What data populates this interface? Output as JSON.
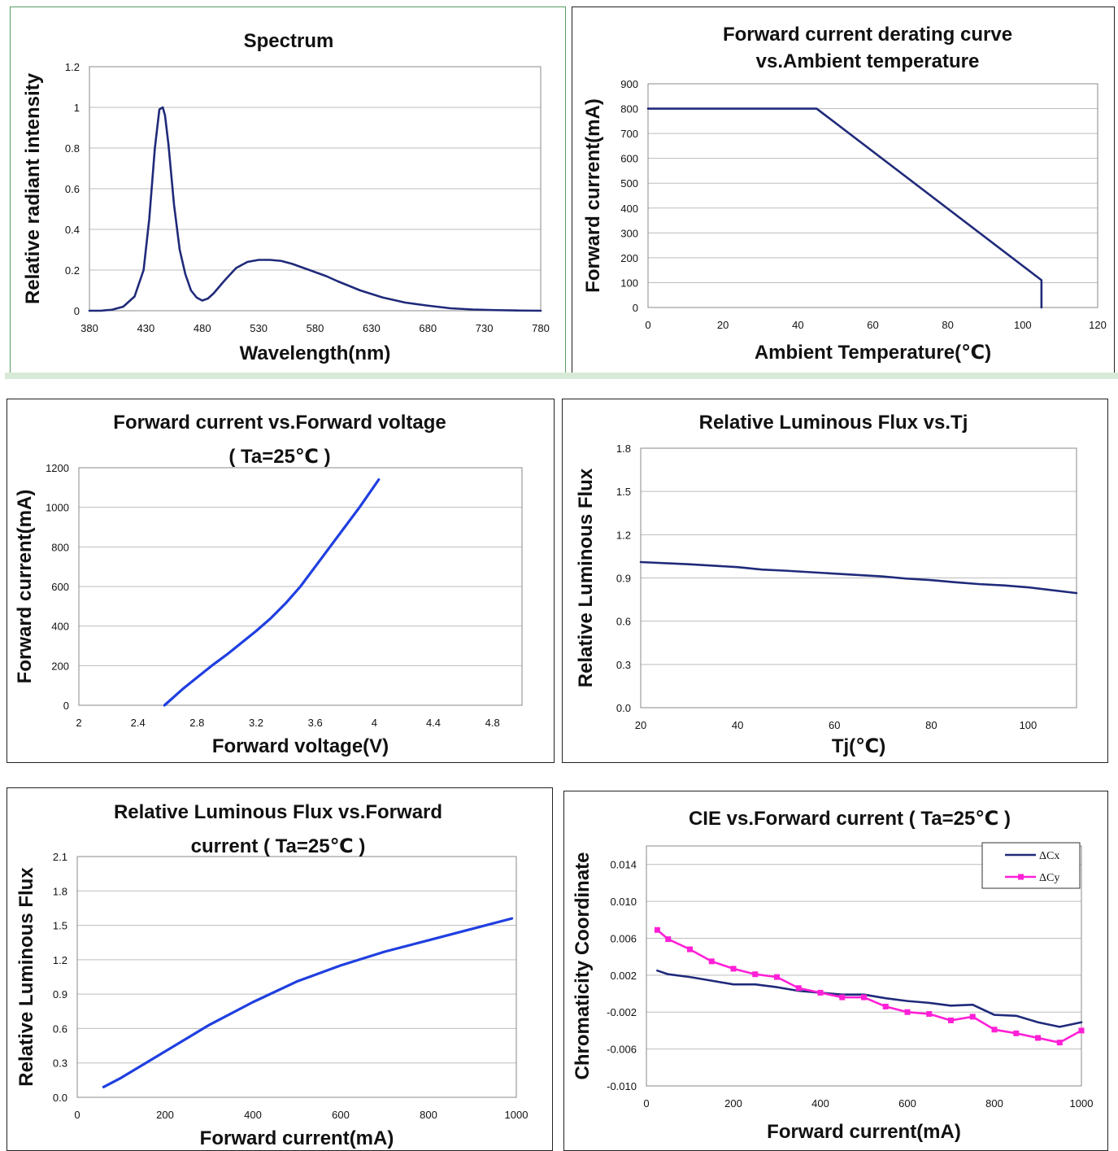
{
  "colors": {
    "navy": "#1f2a7a",
    "blue": "#1f3fe0",
    "magenta": "#ff1fd6"
  },
  "chart_data": [
    {
      "id": "spectrum",
      "type": "line",
      "title": [
        "Spectrum"
      ],
      "xlabel": "Wavelength(nm)",
      "ylabel": "Relative  radiant  intensity",
      "xlim": [
        380,
        780
      ],
      "ylim": [
        0,
        1.2
      ],
      "xticks": [
        380,
        430,
        480,
        530,
        580,
        630,
        680,
        730,
        780
      ],
      "yticks": [
        0,
        0.2,
        0.4,
        0.6,
        0.8,
        1,
        1.2
      ],
      "ytick_labels": [
        "0",
        "0.2",
        "0.4",
        "0.6",
        "0.8",
        "1",
        "1.2"
      ],
      "grid": true,
      "series": [
        {
          "color": "#1f2a7a",
          "x": [
            380,
            390,
            400,
            410,
            420,
            428,
            433,
            438,
            442,
            445,
            447,
            450,
            455,
            460,
            465,
            470,
            475,
            480,
            485,
            490,
            500,
            510,
            520,
            530,
            540,
            550,
            560,
            570,
            580,
            590,
            600,
            620,
            640,
            660,
            680,
            700,
            720,
            740,
            760,
            780
          ],
          "y": [
            0,
            0,
            0.005,
            0.02,
            0.07,
            0.2,
            0.45,
            0.8,
            0.99,
            1.0,
            0.96,
            0.82,
            0.52,
            0.3,
            0.18,
            0.1,
            0.065,
            0.05,
            0.06,
            0.085,
            0.15,
            0.21,
            0.24,
            0.25,
            0.25,
            0.245,
            0.23,
            0.21,
            0.19,
            0.17,
            0.145,
            0.1,
            0.065,
            0.04,
            0.025,
            0.012,
            0.006,
            0.003,
            0.001,
            0
          ]
        }
      ]
    },
    {
      "id": "derating",
      "type": "line",
      "title": [
        "Forward  current  derating  curve",
        "vs.Ambient  temperature"
      ],
      "xlabel": "Ambient   Temperature(℃)",
      "ylabel": "Forward  current(mA)",
      "xlim": [
        0,
        120
      ],
      "ylim": [
        0,
        900
      ],
      "xticks": [
        0,
        20,
        40,
        60,
        80,
        100,
        120
      ],
      "yticks": [
        0,
        100,
        200,
        300,
        400,
        500,
        600,
        700,
        800,
        900
      ],
      "grid": true,
      "series": [
        {
          "color": "#1f2a7a",
          "x": [
            0,
            45,
            105,
            105
          ],
          "y": [
            800,
            800,
            110,
            0
          ]
        }
      ]
    },
    {
      "id": "iv",
      "type": "line",
      "title": [
        "Forward current vs.Forward voltage",
        "( Ta=25℃ )"
      ],
      "xlabel": "Forward voltage(V)",
      "ylabel": "Forward current(mA)",
      "xlim": [
        2,
        5
      ],
      "ylim": [
        0,
        1200
      ],
      "xticks": [
        2,
        2.4,
        2.8,
        3.2,
        3.6,
        4,
        4.4,
        4.8
      ],
      "yticks": [
        0,
        200,
        400,
        600,
        800,
        1000,
        1200
      ],
      "grid": true,
      "series": [
        {
          "color": "#1f3fe0",
          "x": [
            2.58,
            2.7,
            2.8,
            2.9,
            3.0,
            3.1,
            3.2,
            3.3,
            3.4,
            3.5,
            3.6,
            3.7,
            3.8,
            3.9,
            4.03
          ],
          "y": [
            0,
            80,
            140,
            200,
            255,
            315,
            375,
            440,
            515,
            600,
            700,
            800,
            900,
            1000,
            1140
          ]
        }
      ]
    },
    {
      "id": "flux-tj",
      "type": "line",
      "title": [
        "Relative Luminous Flux vs.Tj"
      ],
      "xlabel": "Tj(℃)",
      "ylabel": "Relative Luminous Flux",
      "xlim": [
        20,
        110
      ],
      "ylim": [
        0,
        1.8
      ],
      "xticks": [
        20,
        40,
        60,
        80,
        100
      ],
      "yticks": [
        0,
        0.3,
        0.6,
        0.9,
        1.2,
        1.5,
        1.8
      ],
      "ytick_labels": [
        "0.0",
        "0.3",
        "0.6",
        "0.9",
        "1.2",
        "1.5",
        "1.8"
      ],
      "grid": true,
      "series": [
        {
          "color": "#1f2a7a",
          "x": [
            20,
            30,
            40,
            45,
            50,
            60,
            70,
            75,
            80,
            85,
            90,
            95,
            100,
            110
          ],
          "y": [
            1.01,
            0.995,
            0.975,
            0.958,
            0.95,
            0.93,
            0.91,
            0.895,
            0.885,
            0.87,
            0.857,
            0.848,
            0.835,
            0.795
          ]
        }
      ]
    },
    {
      "id": "flux-if",
      "type": "line",
      "title": [
        "Relative Luminous  Flux vs.Forward",
        "current ( Ta=25℃ )"
      ],
      "xlabel": "Forward current(mA)",
      "ylabel": "Relative Luminous Flux",
      "xlim": [
        0,
        1000
      ],
      "ylim": [
        0,
        2.1
      ],
      "xticks": [
        0,
        200,
        400,
        600,
        800,
        1000
      ],
      "yticks": [
        0,
        0.3,
        0.6,
        0.9,
        1.2,
        1.5,
        1.8,
        2.1
      ],
      "ytick_labels": [
        "0.0",
        "0.3",
        "0.6",
        "0.9",
        "1.2",
        "1.5",
        "1.8",
        "2.1"
      ],
      "grid": true,
      "series": [
        {
          "color": "#1f3fe0",
          "x": [
            60,
            100,
            200,
            300,
            400,
            500,
            600,
            700,
            800,
            900,
            990
          ],
          "y": [
            0.09,
            0.17,
            0.4,
            0.63,
            0.83,
            1.01,
            1.15,
            1.27,
            1.37,
            1.47,
            1.56
          ]
        }
      ]
    },
    {
      "id": "cie",
      "type": "line",
      "title": [
        "CIE vs.Forward current  ( Ta=25℃ )"
      ],
      "xlabel": "Forward current(mA)",
      "ylabel": "Chromaticity Coordinate",
      "xlim": [
        0,
        1000
      ],
      "ylim": [
        -0.01,
        0.016
      ],
      "xticks": [
        0,
        200,
        400,
        600,
        800,
        1000
      ],
      "yticks": [
        -0.01,
        -0.006,
        -0.002,
        0.002,
        0.006,
        0.01,
        0.014
      ],
      "ytick_labels": [
        "-0.010",
        "-0.006",
        "-0.002",
        "0.002",
        "0.006",
        "0.010",
        "0.014"
      ],
      "grid": true,
      "legend": "top-right",
      "series": [
        {
          "name": "ΔCx",
          "color": "#1f2a7a",
          "markers": false,
          "x": [
            25,
            50,
            100,
            150,
            200,
            250,
            300,
            350,
            400,
            450,
            500,
            550,
            600,
            650,
            700,
            750,
            800,
            850,
            900,
            950,
            1000
          ],
          "y": [
            0.0025,
            0.0021,
            0.0018,
            0.0014,
            0.001,
            0.001,
            0.0007,
            0.0003,
            0.0001,
            -0.0001,
            -0.0001,
            -0.0005,
            -0.0008,
            -0.001,
            -0.0013,
            -0.0012,
            -0.0023,
            -0.0024,
            -0.0031,
            -0.0036,
            -0.0031
          ]
        },
        {
          "name": "ΔCy",
          "color": "#ff1fd6",
          "markers": true,
          "x": [
            25,
            50,
            100,
            150,
            200,
            250,
            300,
            350,
            400,
            450,
            500,
            550,
            600,
            650,
            700,
            750,
            800,
            850,
            900,
            950,
            1000
          ],
          "y": [
            0.0069,
            0.0059,
            0.0048,
            0.0035,
            0.0027,
            0.0021,
            0.0018,
            0.0006,
            0.0001,
            -0.0004,
            -0.0004,
            -0.0014,
            -0.002,
            -0.0022,
            -0.0029,
            -0.0025,
            -0.0039,
            -0.0043,
            -0.0048,
            -0.0053,
            -0.004
          ]
        }
      ]
    }
  ]
}
